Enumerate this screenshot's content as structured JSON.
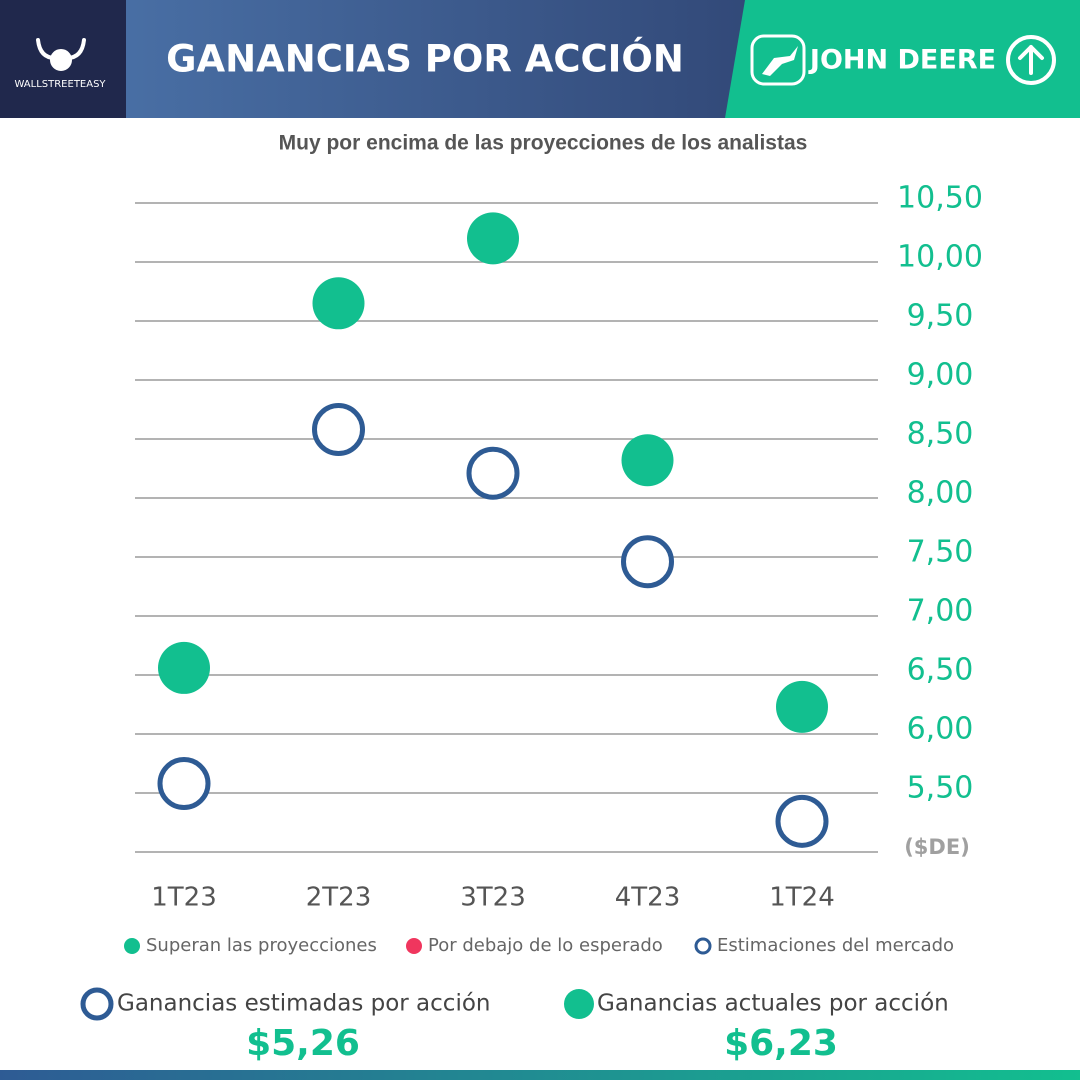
{
  "header": {
    "logo": "WALLSTREETEASY",
    "brand": "JOHN DEERE"
  },
  "chart_data": {
    "type": "dot",
    "title": "GANANCIAS POR ACCIÓN",
    "subtitle": "Muy por encima de las proyecciones de los analistas",
    "unit_label": "($DE)",
    "categories": [
      "1T23",
      "2T23",
      "3T23",
      "4T23",
      "1T24"
    ],
    "series": [
      {
        "name": "Superan las proyecciones",
        "color": "#12bf8f",
        "style": "filled",
        "values": [
          6.56,
          9.65,
          10.2,
          8.32,
          6.23
        ]
      },
      {
        "name": "Por debajo de lo esperado",
        "color": "#f0365e",
        "style": "filled",
        "values": [
          null,
          null,
          null,
          null,
          null
        ]
      },
      {
        "name": "Estimaciones del mercado",
        "color": "#2e5b94",
        "style": "hollow",
        "values": [
          5.58,
          8.58,
          8.21,
          7.46,
          5.26
        ]
      }
    ],
    "ylim": [
      5,
      10.5
    ],
    "yticks": [
      {
        "value": 5.5,
        "label": "5,50"
      },
      {
        "value": 6,
        "label": "6,00"
      },
      {
        "value": 6.5,
        "label": "6,50"
      },
      {
        "value": 7,
        "label": "7,00"
      },
      {
        "value": 7.5,
        "label": "7,50"
      },
      {
        "value": 8,
        "label": "8,00"
      },
      {
        "value": 8.5,
        "label": "8,50"
      },
      {
        "value": 9,
        "label": "9,00"
      },
      {
        "value": 9.5,
        "label": "9,50"
      },
      {
        "value": 10,
        "label": "10,00"
      },
      {
        "value": 10.5,
        "label": "10,50"
      }
    ],
    "grid": true,
    "y_axis_side": "right"
  },
  "summary": [
    {
      "label": "Ganancias estimadas por acción",
      "value": "$5,26",
      "style": "hollow",
      "color": "#2e5b94"
    },
    {
      "label": "Ganancias actuales por acción",
      "value": "$6,23",
      "style": "filled",
      "color": "#12bf8f"
    }
  ]
}
